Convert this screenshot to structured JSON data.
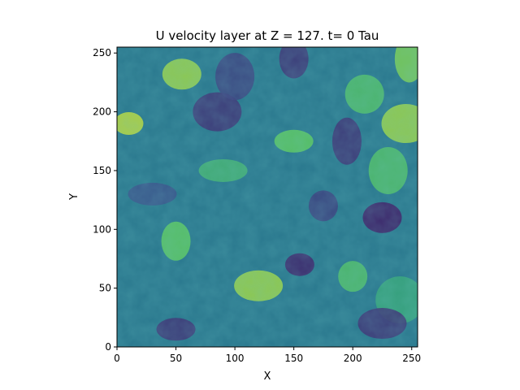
{
  "chart_data": {
    "type": "heatmap",
    "title": "U velocity layer at Z = 127. t= 0 Tau",
    "xlabel": "X",
    "ylabel": "Y",
    "xlim": [
      0,
      255
    ],
    "ylim": [
      0,
      255
    ],
    "x_ticks": [
      0,
      50,
      100,
      150,
      200,
      250
    ],
    "y_ticks": [
      0,
      50,
      100,
      150,
      200,
      250
    ],
    "colormap": "viridis",
    "grid": false,
    "colorbar": false,
    "features": [
      {
        "kind": "high",
        "x": 10,
        "y": 190,
        "value": 0.9
      },
      {
        "kind": "high",
        "x": 55,
        "y": 232,
        "value": 0.85
      },
      {
        "kind": "high",
        "x": 245,
        "y": 190,
        "value": 0.85
      },
      {
        "kind": "high",
        "x": 248,
        "y": 245,
        "value": 0.8
      },
      {
        "kind": "high",
        "x": 150,
        "y": 175,
        "value": 0.75
      },
      {
        "kind": "high",
        "x": 120,
        "y": 52,
        "value": 0.85
      },
      {
        "kind": "high",
        "x": 50,
        "y": 90,
        "value": 0.75
      },
      {
        "kind": "high",
        "x": 230,
        "y": 150,
        "value": 0.7
      },
      {
        "kind": "high",
        "x": 90,
        "y": 150,
        "value": 0.65
      },
      {
        "kind": "high",
        "x": 200,
        "y": 60,
        "value": 0.7
      },
      {
        "kind": "high",
        "x": 210,
        "y": 215,
        "value": 0.7
      },
      {
        "kind": "high",
        "x": 240,
        "y": 40,
        "value": 0.6
      },
      {
        "kind": "low",
        "x": 155,
        "y": 70,
        "value": 0.1
      },
      {
        "kind": "low",
        "x": 225,
        "y": 110,
        "value": 0.08
      },
      {
        "kind": "low",
        "x": 85,
        "y": 200,
        "value": 0.15
      },
      {
        "kind": "low",
        "x": 195,
        "y": 175,
        "value": 0.15
      },
      {
        "kind": "low",
        "x": 50,
        "y": 15,
        "value": 0.15
      },
      {
        "kind": "low",
        "x": 225,
        "y": 20,
        "value": 0.15
      },
      {
        "kind": "low",
        "x": 150,
        "y": 245,
        "value": 0.15
      },
      {
        "kind": "low",
        "x": 100,
        "y": 230,
        "value": 0.2
      },
      {
        "kind": "low",
        "x": 30,
        "y": 130,
        "value": 0.25
      },
      {
        "kind": "low",
        "x": 175,
        "y": 120,
        "value": 0.2
      }
    ]
  }
}
